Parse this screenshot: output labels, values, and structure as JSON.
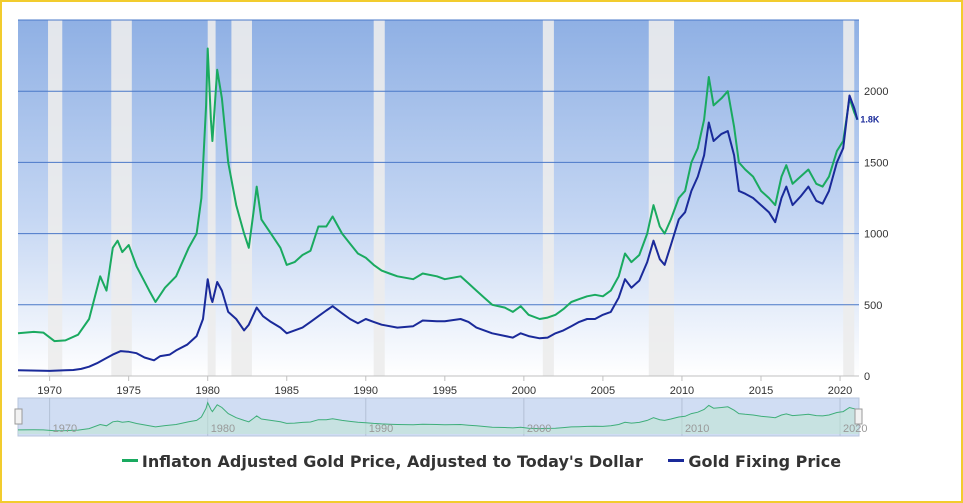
{
  "chart_data": {
    "type": "line",
    "x_range": [
      1968.0,
      2021.2
    ],
    "ylim": [
      0,
      2500
    ],
    "y_ticks": [
      0,
      500,
      1000,
      1500,
      2000
    ],
    "x_ticks": [
      1970,
      1975,
      1980,
      1985,
      1990,
      1995,
      2000,
      2005,
      2010,
      2015,
      2020
    ],
    "navigator_ticks": [
      1970,
      1980,
      1990,
      2000,
      2010,
      2020
    ],
    "grid": true,
    "legend_position": "bottom-center",
    "last_value_label": "1.8K",
    "recession_bands": [
      [
        1969.9,
        1970.8
      ],
      [
        1973.9,
        1975.2
      ],
      [
        1980.0,
        1980.5
      ],
      [
        1981.5,
        1982.8
      ],
      [
        1990.5,
        1991.2
      ],
      [
        2001.2,
        2001.9
      ],
      [
        2007.9,
        2009.5
      ],
      [
        2020.2,
        2020.9
      ]
    ],
    "series": [
      {
        "name": "Inflaton Adjusted Gold Price, Adjusted to Today's Dollar",
        "color": "#1aaa60",
        "points": [
          [
            1968.0,
            300
          ],
          [
            1969.0,
            310
          ],
          [
            1969.6,
            305
          ],
          [
            1970.3,
            245
          ],
          [
            1971.0,
            250
          ],
          [
            1971.8,
            290
          ],
          [
            1972.5,
            400
          ],
          [
            1973.2,
            700
          ],
          [
            1973.6,
            600
          ],
          [
            1974.0,
            900
          ],
          [
            1974.3,
            950
          ],
          [
            1974.6,
            870
          ],
          [
            1975.0,
            920
          ],
          [
            1975.5,
            770
          ],
          [
            1976.3,
            600
          ],
          [
            1976.7,
            520
          ],
          [
            1977.3,
            620
          ],
          [
            1978.0,
            700
          ],
          [
            1978.8,
            900
          ],
          [
            1979.3,
            1000
          ],
          [
            1979.6,
            1250
          ],
          [
            1979.9,
            1900
          ],
          [
            1980.0,
            2300
          ],
          [
            1980.2,
            1800
          ],
          [
            1980.3,
            1650
          ],
          [
            1980.6,
            2150
          ],
          [
            1980.9,
            1950
          ],
          [
            1981.3,
            1500
          ],
          [
            1981.8,
            1200
          ],
          [
            1982.3,
            1000
          ],
          [
            1982.6,
            900
          ],
          [
            1982.9,
            1150
          ],
          [
            1983.1,
            1330
          ],
          [
            1983.4,
            1100
          ],
          [
            1984.0,
            1000
          ],
          [
            1984.6,
            900
          ],
          [
            1985.0,
            780
          ],
          [
            1985.5,
            800
          ],
          [
            1986.0,
            850
          ],
          [
            1986.5,
            880
          ],
          [
            1987.0,
            1050
          ],
          [
            1987.5,
            1050
          ],
          [
            1987.9,
            1120
          ],
          [
            1988.5,
            1000
          ],
          [
            1989.0,
            930
          ],
          [
            1989.5,
            860
          ],
          [
            1990.0,
            830
          ],
          [
            1990.5,
            780
          ],
          [
            1991.0,
            740
          ],
          [
            1991.5,
            720
          ],
          [
            1992.0,
            700
          ],
          [
            1993.0,
            680
          ],
          [
            1993.6,
            720
          ],
          [
            1994.5,
            700
          ],
          [
            1995.0,
            680
          ],
          [
            1996.0,
            700
          ],
          [
            1996.5,
            650
          ],
          [
            1997.0,
            600
          ],
          [
            1997.5,
            550
          ],
          [
            1998.0,
            500
          ],
          [
            1998.8,
            480
          ],
          [
            1999.3,
            450
          ],
          [
            1999.8,
            490
          ],
          [
            2000.3,
            430
          ],
          [
            2001.0,
            400
          ],
          [
            2001.5,
            410
          ],
          [
            2002.0,
            430
          ],
          [
            2002.5,
            470
          ],
          [
            2003.0,
            520
          ],
          [
            2003.5,
            540
          ],
          [
            2004.0,
            560
          ],
          [
            2004.5,
            570
          ],
          [
            2005.0,
            560
          ],
          [
            2005.5,
            600
          ],
          [
            2006.0,
            700
          ],
          [
            2006.4,
            860
          ],
          [
            2006.8,
            800
          ],
          [
            2007.3,
            850
          ],
          [
            2007.8,
            1000
          ],
          [
            2008.2,
            1200
          ],
          [
            2008.6,
            1050
          ],
          [
            2008.9,
            1000
          ],
          [
            2009.3,
            1100
          ],
          [
            2009.8,
            1250
          ],
          [
            2010.2,
            1300
          ],
          [
            2010.6,
            1500
          ],
          [
            2011.0,
            1600
          ],
          [
            2011.4,
            1800
          ],
          [
            2011.7,
            2100
          ],
          [
            2012.0,
            1900
          ],
          [
            2012.5,
            1950
          ],
          [
            2012.9,
            2000
          ],
          [
            2013.3,
            1750
          ],
          [
            2013.6,
            1500
          ],
          [
            2014.0,
            1450
          ],
          [
            2014.5,
            1400
          ],
          [
            2015.0,
            1300
          ],
          [
            2015.5,
            1250
          ],
          [
            2015.9,
            1200
          ],
          [
            2016.3,
            1400
          ],
          [
            2016.6,
            1480
          ],
          [
            2017.0,
            1350
          ],
          [
            2017.5,
            1400
          ],
          [
            2018.0,
            1450
          ],
          [
            2018.5,
            1350
          ],
          [
            2018.9,
            1330
          ],
          [
            2019.3,
            1400
          ],
          [
            2019.8,
            1580
          ],
          [
            2020.2,
            1650
          ],
          [
            2020.6,
            1950
          ],
          [
            2020.9,
            1850
          ],
          [
            2021.1,
            1800
          ]
        ]
      },
      {
        "name": "Gold Fixing Price",
        "color": "#1a2a9a",
        "points": [
          [
            1968.0,
            40
          ],
          [
            1970.0,
            36
          ],
          [
            1971.0,
            40
          ],
          [
            1971.5,
            42
          ],
          [
            1972.0,
            50
          ],
          [
            1972.5,
            65
          ],
          [
            1973.0,
            90
          ],
          [
            1973.5,
            120
          ],
          [
            1974.0,
            150
          ],
          [
            1974.5,
            175
          ],
          [
            1975.0,
            170
          ],
          [
            1975.5,
            160
          ],
          [
            1976.0,
            130
          ],
          [
            1976.6,
            110
          ],
          [
            1977.0,
            140
          ],
          [
            1977.6,
            150
          ],
          [
            1978.0,
            180
          ],
          [
            1978.7,
            220
          ],
          [
            1979.3,
            280
          ],
          [
            1979.7,
            400
          ],
          [
            1980.0,
            680
          ],
          [
            1980.2,
            550
          ],
          [
            1980.3,
            520
          ],
          [
            1980.6,
            660
          ],
          [
            1980.9,
            600
          ],
          [
            1981.3,
            450
          ],
          [
            1981.8,
            400
          ],
          [
            1982.3,
            320
          ],
          [
            1982.6,
            360
          ],
          [
            1983.1,
            480
          ],
          [
            1983.5,
            420
          ],
          [
            1984.0,
            380
          ],
          [
            1984.6,
            340
          ],
          [
            1985.0,
            300
          ],
          [
            1985.5,
            320
          ],
          [
            1986.0,
            340
          ],
          [
            1986.5,
            380
          ],
          [
            1987.0,
            420
          ],
          [
            1987.5,
            460
          ],
          [
            1987.9,
            490
          ],
          [
            1988.5,
            440
          ],
          [
            1989.0,
            400
          ],
          [
            1989.5,
            370
          ],
          [
            1990.0,
            400
          ],
          [
            1990.5,
            380
          ],
          [
            1991.0,
            360
          ],
          [
            1992.0,
            340
          ],
          [
            1993.0,
            350
          ],
          [
            1993.6,
            390
          ],
          [
            1994.5,
            385
          ],
          [
            1995.0,
            385
          ],
          [
            1996.0,
            400
          ],
          [
            1996.5,
            380
          ],
          [
            1997.0,
            340
          ],
          [
            1997.5,
            320
          ],
          [
            1998.0,
            300
          ],
          [
            1999.3,
            270
          ],
          [
            1999.8,
            300
          ],
          [
            2000.3,
            280
          ],
          [
            2001.0,
            265
          ],
          [
            2001.5,
            270
          ],
          [
            2002.0,
            300
          ],
          [
            2002.5,
            320
          ],
          [
            2003.0,
            350
          ],
          [
            2003.5,
            380
          ],
          [
            2004.0,
            400
          ],
          [
            2004.5,
            400
          ],
          [
            2005.0,
            430
          ],
          [
            2005.5,
            450
          ],
          [
            2006.0,
            550
          ],
          [
            2006.4,
            680
          ],
          [
            2006.8,
            620
          ],
          [
            2007.3,
            670
          ],
          [
            2007.8,
            800
          ],
          [
            2008.2,
            950
          ],
          [
            2008.6,
            820
          ],
          [
            2008.9,
            780
          ],
          [
            2009.3,
            920
          ],
          [
            2009.8,
            1100
          ],
          [
            2010.2,
            1150
          ],
          [
            2010.6,
            1300
          ],
          [
            2011.0,
            1400
          ],
          [
            2011.4,
            1550
          ],
          [
            2011.7,
            1780
          ],
          [
            2012.0,
            1650
          ],
          [
            2012.5,
            1700
          ],
          [
            2012.9,
            1720
          ],
          [
            2013.3,
            1550
          ],
          [
            2013.6,
            1300
          ],
          [
            2014.0,
            1280
          ],
          [
            2014.5,
            1250
          ],
          [
            2015.0,
            1200
          ],
          [
            2015.5,
            1150
          ],
          [
            2015.9,
            1080
          ],
          [
            2016.3,
            1250
          ],
          [
            2016.6,
            1330
          ],
          [
            2017.0,
            1200
          ],
          [
            2017.5,
            1260
          ],
          [
            2018.0,
            1330
          ],
          [
            2018.5,
            1230
          ],
          [
            2018.9,
            1210
          ],
          [
            2019.3,
            1300
          ],
          [
            2019.8,
            1500
          ],
          [
            2020.2,
            1600
          ],
          [
            2020.6,
            1970
          ],
          [
            2020.9,
            1880
          ],
          [
            2021.1,
            1800
          ]
        ]
      }
    ]
  }
}
